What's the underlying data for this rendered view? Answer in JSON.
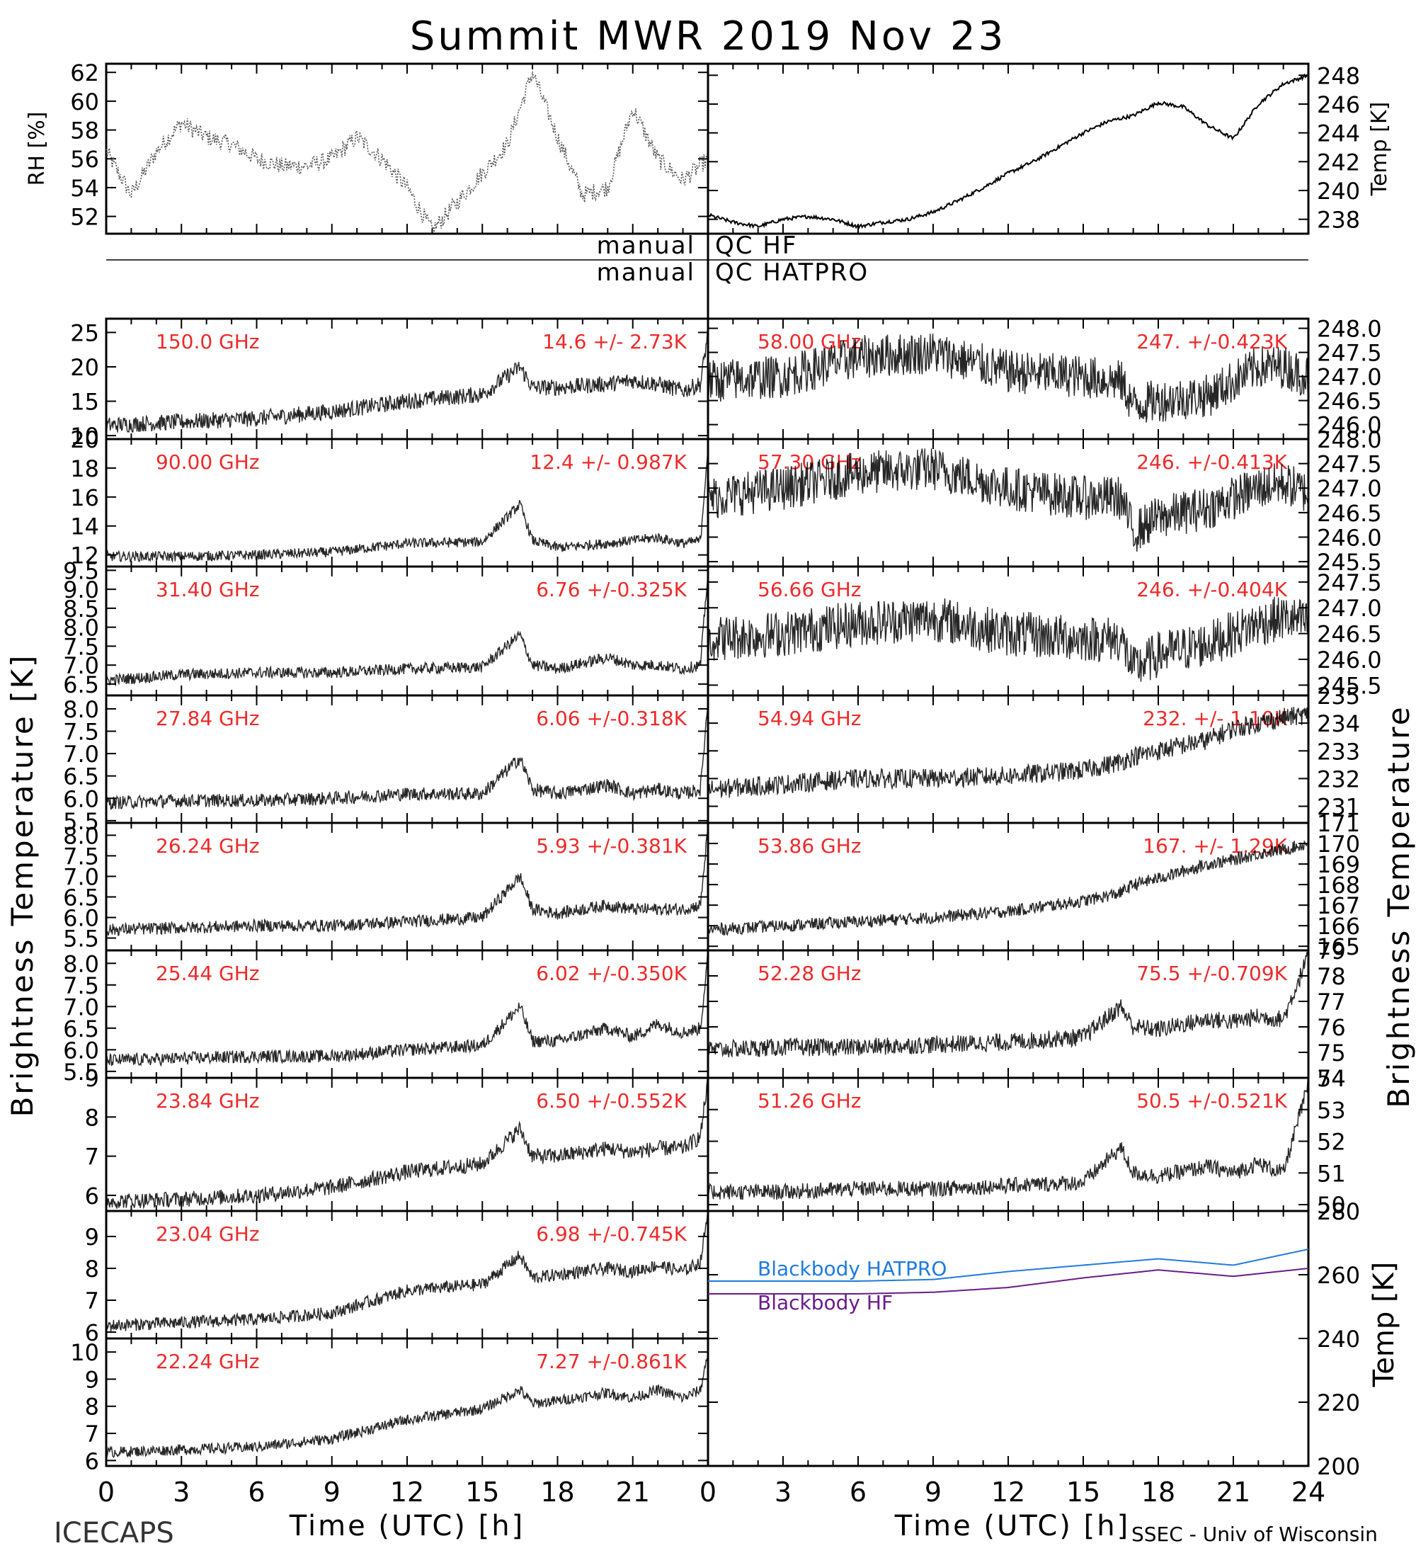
{
  "title": "Summit MWR 2019 Nov 23",
  "footer_left": "ICECAPS",
  "footer_right": "SSEC - Univ of Wisconsin",
  "xlabel": "Time (UTC) [h]",
  "left_ylabel": "Brightness Temperature [K]",
  "right_ylabel": "Brightness Temperature",
  "qc_rows": [
    {
      "left": "manual",
      "right": "QC HF"
    },
    {
      "left": "manual",
      "right": "QC HATPRO"
    }
  ],
  "chart_data": [
    {
      "id": "rh",
      "type": "line",
      "side": "left",
      "ylabel": "RH [%]",
      "ylim": [
        50.8,
        62.6
      ],
      "ticks": [
        52,
        54,
        56,
        58,
        60,
        62
      ],
      "tick_labels": [
        "52",
        "54",
        "56",
        "58",
        "60",
        "62"
      ],
      "style": "dots",
      "color": "#555555",
      "x": [
        0,
        1,
        2,
        3,
        4,
        5,
        6,
        7,
        8,
        9,
        10,
        11,
        12,
        13,
        14,
        15,
        16,
        17,
        18,
        19,
        20,
        21,
        22,
        23,
        24
      ],
      "y": [
        56.5,
        53.5,
        56.5,
        58.5,
        57.5,
        57,
        56,
        55.5,
        55.5,
        56,
        57.5,
        56,
        54,
        51,
        53,
        55,
        57,
        62,
        57.5,
        53.5,
        54,
        59.5,
        56,
        54.5,
        56
      ]
    },
    {
      "id": "temp_top",
      "type": "line",
      "side": "right",
      "ylabel": "Temp [K]",
      "ylim": [
        237,
        248.8
      ],
      "ticks": [
        238,
        240,
        242,
        244,
        246,
        248
      ],
      "tick_labels": [
        "238",
        "240",
        "242",
        "244",
        "246",
        "248"
      ],
      "style": "line",
      "color": "#000000",
      "x": [
        0,
        1,
        2,
        3,
        4,
        5,
        6,
        7,
        8,
        9,
        10,
        11,
        12,
        13,
        14,
        15,
        16,
        17,
        18,
        19,
        20,
        21,
        22,
        23,
        24
      ],
      "y": [
        238.3,
        237.8,
        237.5,
        238,
        238.2,
        238,
        237.5,
        237.8,
        238,
        238.5,
        239.3,
        240.2,
        241.2,
        242,
        243,
        244,
        244.8,
        245.2,
        246.1,
        245.8,
        244.5,
        243.6,
        246,
        247.4,
        248
      ]
    },
    {
      "id": "f150",
      "side": "left",
      "label": "150.0 GHz",
      "stat": "14.6 +/- 2.73K",
      "ylim": [
        9.5,
        27
      ],
      "ticks": [
        10,
        15,
        20,
        25
      ],
      "tick_labels": [
        "10",
        "15",
        "20",
        "25"
      ],
      "x": [
        0,
        3,
        6,
        9,
        12,
        15,
        16.5,
        17,
        18,
        20,
        21,
        22,
        23,
        23.7,
        24
      ],
      "y": [
        11.5,
        12,
        12.5,
        13.5,
        15,
        16,
        20,
        17,
        17,
        17.5,
        18,
        17.5,
        16.5,
        17.5,
        25
      ],
      "noise": 1.2
    },
    {
      "id": "f90",
      "side": "left",
      "label": "90.00 GHz",
      "stat": "12.4 +/- 0.987K",
      "ylim": [
        11.2,
        20
      ],
      "ticks": [
        12,
        14,
        16,
        18,
        20
      ],
      "tick_labels": [
        "12",
        "14",
        "16",
        "18",
        "20"
      ],
      "x": [
        0,
        3,
        6,
        9,
        12,
        15,
        16.5,
        17,
        18,
        20,
        21,
        22,
        23,
        23.7,
        24
      ],
      "y": [
        11.9,
        11.9,
        12,
        12.2,
        12.8,
        12.9,
        15.5,
        13,
        12.5,
        12.8,
        13,
        13.2,
        12.8,
        13,
        19.5
      ],
      "noise": 0.35
    },
    {
      "id": "f3140",
      "side": "left",
      "label": "31.40 GHz",
      "stat": "6.76 +/-0.325K",
      "ylim": [
        6.2,
        9.6
      ],
      "ticks": [
        6.5,
        7,
        7.5,
        8,
        8.5,
        9,
        9.5
      ],
      "tick_labels": [
        "6.5",
        "7.0",
        "7.5",
        "8.0",
        "8.5",
        "9.0",
        "9.5"
      ],
      "x": [
        0,
        3,
        6,
        9,
        12,
        15,
        16.5,
        17,
        18,
        20,
        21,
        22,
        23,
        23.7,
        24
      ],
      "y": [
        6.6,
        6.75,
        6.8,
        6.8,
        6.9,
        6.95,
        7.8,
        7,
        6.9,
        7.2,
        7,
        7,
        6.9,
        7,
        9.5
      ],
      "noise": 0.15
    },
    {
      "id": "f2784",
      "side": "left",
      "label": "27.84 GHz",
      "stat": "6.06 +/-0.318K",
      "ylim": [
        5.45,
        8.3
      ],
      "ticks": [
        5.5,
        6,
        6.5,
        7,
        7.5,
        8
      ],
      "tick_labels": [
        "5.5",
        "6.0",
        "6.5",
        "7.0",
        "7.5",
        "8.0"
      ],
      "x": [
        0,
        3,
        6,
        9,
        12,
        15,
        16.5,
        17,
        18,
        20,
        21,
        22,
        23,
        23.7,
        24
      ],
      "y": [
        5.9,
        5.95,
        5.95,
        6,
        6.1,
        6.1,
        6.9,
        6.2,
        6.1,
        6.3,
        6.1,
        6.2,
        6.1,
        6.2,
        8.2
      ],
      "noise": 0.15
    },
    {
      "id": "f2624",
      "side": "left",
      "label": "26.24 GHz",
      "stat": "5.93 +/-0.381K",
      "ylim": [
        5.2,
        8.3
      ],
      "ticks": [
        5.5,
        6,
        6.5,
        7,
        7.5,
        8
      ],
      "tick_labels": [
        "5.5",
        "6.0",
        "6.5",
        "7.0",
        "7.5",
        "8.0"
      ],
      "x": [
        0,
        3,
        6,
        9,
        12,
        15,
        16.5,
        17,
        18,
        20,
        21,
        22,
        23,
        23.7,
        24
      ],
      "y": [
        5.7,
        5.75,
        5.8,
        5.8,
        5.9,
        6,
        7,
        6.2,
        6.1,
        6.3,
        6.2,
        6.2,
        6.2,
        6.3,
        8.2
      ],
      "noise": 0.15
    },
    {
      "id": "f2544",
      "side": "left",
      "label": "25.44 GHz",
      "stat": "6.02 +/-0.350K",
      "ylim": [
        5.35,
        8.3
      ],
      "ticks": [
        5.5,
        6,
        6.5,
        7,
        7.5,
        8
      ],
      "tick_labels": [
        "5.5",
        "6.0",
        "6.5",
        "7.0",
        "7.5",
        "8.0"
      ],
      "x": [
        0,
        3,
        6,
        9,
        12,
        15,
        16.5,
        17,
        18,
        20,
        21,
        22,
        23,
        23.7,
        24
      ],
      "y": [
        5.75,
        5.8,
        5.85,
        5.85,
        6,
        6.1,
        7,
        6.2,
        6.2,
        6.5,
        6.3,
        6.6,
        6.4,
        6.5,
        8.2
      ],
      "noise": 0.15
    },
    {
      "id": "f2384",
      "side": "left",
      "label": "23.84 GHz",
      "stat": "6.50 +/-0.552K",
      "ylim": [
        5.6,
        9
      ],
      "ticks": [
        6,
        7,
        8,
        9
      ],
      "tick_labels": [
        "6",
        "7",
        "8",
        "9"
      ],
      "x": [
        0,
        3,
        6,
        9,
        12,
        15,
        16.5,
        17,
        18,
        20,
        21,
        22,
        23,
        23.7,
        24
      ],
      "y": [
        5.85,
        5.9,
        6,
        6.2,
        6.6,
        6.8,
        7.7,
        7,
        7,
        7.2,
        7.1,
        7.2,
        7.2,
        7.5,
        9
      ],
      "noise": 0.2
    },
    {
      "id": "f2304",
      "side": "left",
      "label": "23.04 GHz",
      "stat": "6.98 +/-0.745K",
      "ylim": [
        5.8,
        9.8
      ],
      "ticks": [
        6,
        7,
        8,
        9
      ],
      "tick_labels": [
        "6",
        "7",
        "8",
        "9"
      ],
      "x": [
        0,
        3,
        6,
        9,
        12,
        15,
        16.5,
        17,
        18,
        20,
        21,
        22,
        23,
        23.7,
        24
      ],
      "y": [
        6.2,
        6.3,
        6.4,
        6.6,
        7.3,
        7.5,
        8.4,
        7.7,
        7.8,
        8,
        7.9,
        8.1,
        7.9,
        8.2,
        9.8
      ],
      "noise": 0.2
    },
    {
      "id": "f2224",
      "side": "left",
      "label": "22.24 GHz",
      "stat": "7.27 +/-0.861K",
      "ylim": [
        5.8,
        10.5
      ],
      "ticks": [
        6,
        7,
        8,
        9,
        10
      ],
      "tick_labels": [
        "6",
        "7",
        "8",
        "9",
        "10"
      ],
      "x": [
        0,
        3,
        6,
        9,
        12,
        15,
        16.5,
        17,
        18,
        20,
        21,
        22,
        23,
        23.7,
        24
      ],
      "y": [
        6.3,
        6.4,
        6.5,
        6.8,
        7.5,
        7.9,
        8.6,
        8.1,
        8.2,
        8.5,
        8.3,
        8.6,
        8.3,
        8.6,
        10
      ],
      "noise": 0.2
    },
    {
      "id": "f5800",
      "side": "right",
      "label": "58.00 GHz",
      "stat": "247. +/-0.423K",
      "ylim": [
        245.7,
        248.2
      ],
      "ticks": [
        246,
        246.5,
        247,
        247.5,
        248
      ],
      "tick_labels": [
        "246.0",
        "246.5",
        "247.0",
        "247.5",
        "248.0"
      ],
      "x": [
        0,
        3,
        6,
        9,
        12,
        15,
        16.5,
        17,
        18,
        20,
        21,
        22,
        23,
        24
      ],
      "y": [
        246.9,
        247,
        247.4,
        247.5,
        247.1,
        247,
        246.9,
        246.4,
        246.5,
        246.6,
        246.9,
        247.2,
        247.2,
        247
      ],
      "noise": 0.45
    },
    {
      "id": "f5730",
      "side": "right",
      "label": "57.30 GHz",
      "stat": "246. +/-0.413K",
      "ylim": [
        245.4,
        248
      ],
      "ticks": [
        245.5,
        246,
        246.5,
        247,
        247.5,
        248
      ],
      "tick_labels": [
        "245.5",
        "246.0",
        "246.5",
        "247.0",
        "247.5",
        "248.0"
      ],
      "x": [
        0,
        3,
        6,
        9,
        12,
        15,
        16.5,
        17,
        18,
        20,
        21,
        22,
        23,
        24
      ],
      "y": [
        246.8,
        247,
        247.3,
        247.4,
        247,
        246.8,
        246.8,
        246.1,
        246.4,
        246.6,
        246.8,
        247,
        247.1,
        246.9
      ],
      "noise": 0.45
    },
    {
      "id": "f5666",
      "side": "right",
      "label": "56.66 GHz",
      "stat": "246. +/-0.404K",
      "ylim": [
        245.3,
        247.8
      ],
      "ticks": [
        245.5,
        246,
        246.5,
        247,
        247.5
      ],
      "tick_labels": [
        "245.5",
        "246.0",
        "246.5",
        "247.0",
        "247.5"
      ],
      "x": [
        0,
        3,
        6,
        9,
        12,
        15,
        16.5,
        17,
        18,
        20,
        21,
        22,
        23,
        24
      ],
      "y": [
        246.4,
        246.5,
        246.7,
        246.8,
        246.5,
        246.4,
        246.4,
        245.8,
        246.1,
        246.3,
        246.5,
        246.7,
        246.8,
        246.7
      ],
      "noise": 0.45
    },
    {
      "id": "f5494",
      "side": "right",
      "label": "54.94 GHz",
      "stat": "232. +/- 1.10K",
      "ylim": [
        230.4,
        235
      ],
      "ticks": [
        231,
        232,
        233,
        234,
        235
      ],
      "tick_labels": [
        "231",
        "232",
        "233",
        "234",
        "235"
      ],
      "x": [
        0,
        3,
        6,
        9,
        12,
        15,
        16.5,
        17,
        18,
        20,
        21,
        22,
        23,
        24
      ],
      "y": [
        231.6,
        231.8,
        232,
        232,
        232.1,
        232.3,
        232.6,
        232.8,
        233,
        233.4,
        233.8,
        234,
        234.2,
        234.3
      ],
      "noise": 0.35
    },
    {
      "id": "f5386",
      "side": "right",
      "label": "53.86 GHz",
      "stat": "167. +/- 1.29K",
      "ylim": [
        164.8,
        171
      ],
      "ticks": [
        165,
        166,
        167,
        168,
        169,
        170,
        171
      ],
      "tick_labels": [
        "165",
        "166",
        "167",
        "168",
        "169",
        "170",
        "171"
      ],
      "x": [
        0,
        3,
        6,
        9,
        12,
        15,
        16.5,
        17,
        18,
        20,
        21,
        22,
        23,
        24
      ],
      "y": [
        165.8,
        166,
        166.2,
        166.4,
        166.7,
        167.2,
        167.6,
        168,
        168.3,
        169,
        169.2,
        169.5,
        169.7,
        170
      ],
      "noise": 0.3
    },
    {
      "id": "f5228",
      "side": "right",
      "label": "52.28 GHz",
      "stat": "75.5 +/-0.709K",
      "ylim": [
        74,
        79
      ],
      "ticks": [
        74,
        75,
        76,
        77,
        78,
        79
      ],
      "tick_labels": [
        "74",
        "75",
        "76",
        "77",
        "78",
        "79"
      ],
      "x": [
        0,
        3,
        6,
        9,
        12,
        15,
        16.5,
        17,
        18,
        20,
        21,
        22,
        23,
        24
      ],
      "y": [
        75.1,
        75.2,
        75.2,
        75.3,
        75.4,
        75.6,
        76.8,
        76,
        75.9,
        76.3,
        76.2,
        76.4,
        76.3,
        78.8
      ],
      "noise": 0.35
    },
    {
      "id": "f5126",
      "side": "right",
      "label": "51.26 GHz",
      "stat": "50.5 +/-0.521K",
      "ylim": [
        49.8,
        54
      ],
      "ticks": [
        50,
        51,
        52,
        53,
        54
      ],
      "tick_labels": [
        "50",
        "51",
        "52",
        "53",
        "54"
      ],
      "x": [
        0,
        3,
        6,
        9,
        12,
        15,
        16.5,
        17,
        18,
        20,
        21,
        22,
        23,
        24
      ],
      "y": [
        50.4,
        50.4,
        50.5,
        50.5,
        50.6,
        50.7,
        51.8,
        51,
        50.9,
        51.2,
        51,
        51.3,
        51,
        53.8
      ],
      "noise": 0.25
    },
    {
      "id": "bb",
      "type": "line",
      "side": "right",
      "ylabel": "Temp [K]",
      "ylim": [
        200,
        280
      ],
      "ticks": [
        200,
        220,
        240,
        260,
        280
      ],
      "tick_labels": [
        "200",
        "220",
        "240",
        "260",
        "280"
      ],
      "series": [
        {
          "name": "Blackbody HATPRO",
          "color": "#1e7bdc",
          "x": [
            0,
            3,
            6,
            9,
            12,
            15,
            18,
            21,
            24
          ],
          "y": [
            258,
            258,
            258,
            258.5,
            261,
            263,
            265,
            263,
            268
          ]
        },
        {
          "name": "Blackbody HF",
          "color": "#6a1b8a",
          "x": [
            0,
            3,
            6,
            9,
            12,
            15,
            18,
            21,
            24
          ],
          "y": [
            254,
            254,
            254,
            254.5,
            256,
            259,
            261.5,
            259.5,
            262
          ]
        }
      ]
    }
  ],
  "x_ticks_left": [
    0,
    3,
    6,
    9,
    12,
    15,
    18,
    21
  ],
  "x_ticks_right": [
    0,
    3,
    6,
    9,
    12,
    15,
    18,
    21,
    24
  ],
  "x_tick_labels_left": [
    "0",
    "3",
    "6",
    "9",
    "12",
    "15",
    "18",
    "21"
  ],
  "x_tick_labels_right": [
    "0",
    "3",
    "6",
    "9",
    "12",
    "15",
    "18",
    "21",
    "24"
  ]
}
